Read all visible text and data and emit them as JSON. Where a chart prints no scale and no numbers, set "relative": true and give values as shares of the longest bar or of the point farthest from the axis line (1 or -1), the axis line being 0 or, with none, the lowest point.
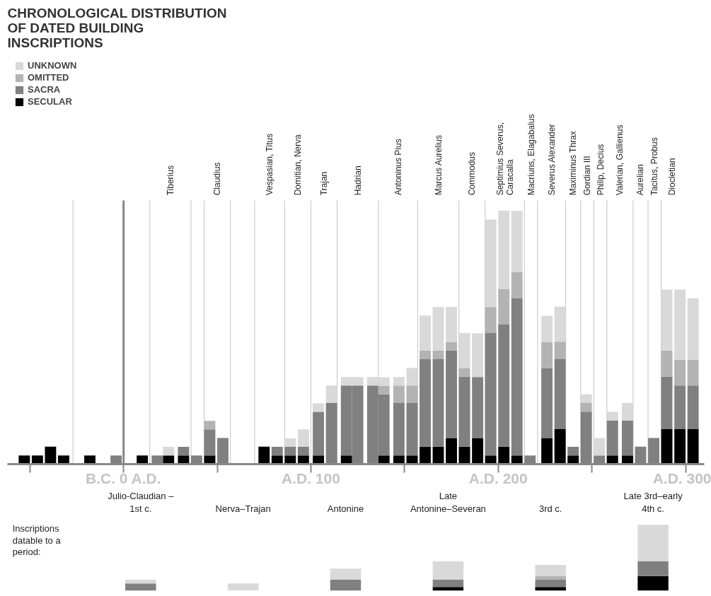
{
  "chart_data": [
    {
      "type": "bar",
      "stacked": true,
      "relative": true,
      "title": "CHRONOLOGICAL DISTRIBUTION OF DATED BUILDING INSCRIPTIONS",
      "legend": "top left",
      "grid": false,
      "x": [
        -53,
        -46,
        -39,
        -32,
        -18,
        -4,
        10,
        18,
        24,
        32,
        39,
        46,
        53,
        75,
        82,
        89,
        96,
        104,
        111,
        119,
        125,
        133,
        139,
        147,
        154,
        161,
        168,
        175,
        182,
        189,
        196,
        203,
        210,
        217,
        226,
        233,
        240,
        247,
        254,
        261,
        269,
        276,
        283,
        290,
        297,
        304
      ],
      "xlim": [
        -62,
        310
      ],
      "xticks": [
        {
          "value": -50,
          "label": null
        },
        {
          "value": 0,
          "label": "B.C. 0 A.D."
        },
        {
          "value": 50,
          "label": null
        },
        {
          "value": 100,
          "label": "A.D. 100"
        },
        {
          "value": 150,
          "label": null
        },
        {
          "value": 200,
          "label": "A.D. 200"
        },
        {
          "value": 250,
          "label": null
        },
        {
          "value": 300,
          "label": "A.D. 300"
        }
      ],
      "series": [
        {
          "name": "SECULAR",
          "color": "#000000",
          "values": [
            0.034,
            0.034,
            0.069,
            0.034,
            0.034,
            0,
            0.034,
            0,
            0.034,
            0.034,
            0,
            0.034,
            0,
            0.069,
            0.034,
            0.034,
            0.034,
            0.034,
            0,
            0.034,
            0,
            0,
            0.034,
            0.034,
            0.034,
            0.069,
            0.069,
            0.103,
            0.069,
            0.103,
            0.034,
            0.069,
            0.034,
            0,
            0.103,
            0.138,
            0.034,
            0,
            0,
            0.034,
            0.034,
            0,
            0,
            0.138,
            0.138,
            0.138
          ]
        },
        {
          "name": "SACRA",
          "color": "#808080",
          "values": [
            0,
            0,
            0,
            0,
            0,
            0.034,
            0,
            0.034,
            0,
            0.034,
            0.034,
            0.103,
            0.103,
            0,
            0.034,
            0.034,
            0.034,
            0.172,
            0.241,
            0.276,
            0.31,
            0.31,
            0.241,
            0.207,
            0.207,
            0.345,
            0.345,
            0.345,
            0.276,
            0.241,
            0.483,
            0.483,
            0.621,
            0.034,
            0.276,
            0.276,
            0.034,
            0.207,
            0.034,
            0.138,
            0.138,
            0.069,
            0.103,
            0.207,
            0.172,
            0.172
          ]
        },
        {
          "name": "OMITTED",
          "color": "#b3b3b3",
          "values": [
            0,
            0,
            0,
            0,
            0,
            0,
            0,
            0,
            0,
            0,
            0,
            0.034,
            0,
            0,
            0,
            0,
            0,
            0,
            0,
            0,
            0,
            0,
            0.034,
            0.069,
            0.069,
            0.034,
            0.034,
            0.034,
            0.034,
            0,
            0.103,
            0.138,
            0.103,
            0,
            0.103,
            0.069,
            0,
            0.034,
            0,
            0,
            0,
            0,
            0,
            0.103,
            0.103,
            0.103
          ]
        },
        {
          "name": "UNKNOWN",
          "color": "#d9d9d9",
          "values": [
            0,
            0,
            0,
            0,
            0,
            0,
            0,
            0,
            0.034,
            0,
            0,
            0,
            0,
            0,
            0,
            0.034,
            0.069,
            0.034,
            0.069,
            0.034,
            0.034,
            0.034,
            0.034,
            0.034,
            0.069,
            0.138,
            0.172,
            0.138,
            0.138,
            0.172,
            0.345,
            0.31,
            0.241,
            0,
            0.103,
            0.138,
            0,
            0.034,
            0.069,
            0.034,
            0.069,
            0,
            0,
            0.241,
            0.276,
            0.241
          ]
        }
      ],
      "ref_lines": [
        {
          "axis": "x",
          "value": -27,
          "label": null,
          "color": "#cccccc"
        },
        {
          "axis": "x",
          "value": 0,
          "label": null,
          "color": "#888888"
        },
        {
          "axis": "x",
          "value": 14,
          "label": "Tiberius",
          "color": "#cccccc"
        },
        {
          "axis": "x",
          "value": 36,
          "label": null,
          "color": "#cccccc"
        },
        {
          "axis": "x",
          "value": 43,
          "label": "Claudius",
          "color": "#cccccc"
        },
        {
          "axis": "x",
          "value": 57,
          "label": null,
          "color": "#cccccc"
        },
        {
          "axis": "x",
          "value": 70,
          "label": "Vespasian, Titus",
          "color": "#cccccc"
        },
        {
          "axis": "x",
          "value": 86,
          "label": "Domitian, Nerva",
          "color": "#cccccc"
        },
        {
          "axis": "x",
          "value": 100,
          "label": "Trajan",
          "color": "#cccccc"
        },
        {
          "axis": "x",
          "value": 114,
          "label": "Hadrian",
          "color": "#cccccc"
        },
        {
          "axis": "x",
          "value": 136,
          "label": "Antoninus Pius",
          "color": "#cccccc"
        },
        {
          "axis": "x",
          "value": 157,
          "label": "Marcus Aurelius",
          "color": "#cccccc"
        },
        {
          "axis": "x",
          "value": 179,
          "label": "Commodus",
          "color": "#cccccc"
        },
        {
          "axis": "x",
          "value": 193,
          "label": "Septimius Severus, Caracalla",
          "color": "#cccccc"
        },
        {
          "axis": "x",
          "value": 214,
          "label": "Macriuns, Elagabalus",
          "color": "#cccccc"
        },
        {
          "axis": "x",
          "value": 221,
          "label": "Severus Alexander",
          "color": "#cccccc"
        },
        {
          "axis": "x",
          "value": 236,
          "label": "Maximinus Thrax",
          "color": "#cccccc"
        },
        {
          "axis": "x",
          "value": 244,
          "label": "Gordian III",
          "color": "#cccccc"
        },
        {
          "axis": "x",
          "value": 251,
          "label": "Philip, Decius",
          "color": "#cccccc"
        },
        {
          "axis": "x",
          "value": 258,
          "label": "Valerian, Gallienus",
          "color": "#cccccc"
        },
        {
          "axis": "x",
          "value": 272,
          "label": "Aurelian",
          "color": "#cccccc"
        },
        {
          "axis": "x",
          "value": 280,
          "label": "Tacitus, Probus",
          "color": "#cccccc"
        },
        {
          "axis": "x",
          "value": 287,
          "label": "Diocletian",
          "color": "#cccccc"
        }
      ]
    },
    {
      "type": "bar",
      "stacked": true,
      "relative": true,
      "title": "Inscriptions datable to a period:",
      "categories": [
        "Julio-Claudian – 1st c.",
        "Nerva–Trajan",
        "Antonine",
        "Late Antonine–Severan",
        "3rd c.",
        "Late 3rd–early 4th c."
      ],
      "series": [
        {
          "color": "#000000",
          "values": [
            0,
            0,
            0,
            0.056,
            0.056,
            0.222
          ]
        },
        {
          "color": "#808080",
          "values": [
            0.111,
            0,
            0.167,
            0.111,
            0.111,
            0.222
          ]
        },
        {
          "color": "#b3b3b3",
          "values": [
            0,
            0,
            0,
            0,
            0.056,
            0
          ]
        },
        {
          "color": "#d9d9d9",
          "values": [
            0.056,
            0.111,
            0.167,
            0.278,
            0.167,
            0.556
          ]
        }
      ]
    }
  ]
}
